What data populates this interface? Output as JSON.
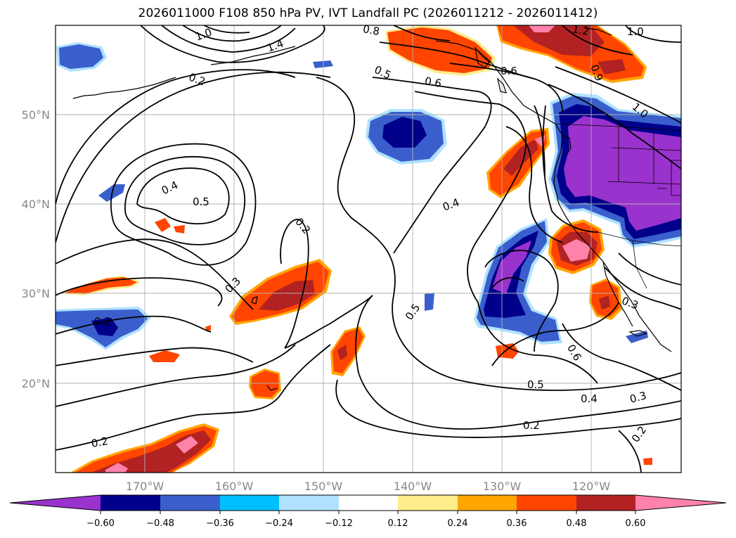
{
  "title": "2026011000 F108 850 hPa PV, IVT Landfall PC (2026011212 - 2026011412)",
  "map": {
    "lon_labels": [
      "170°W",
      "160°W",
      "150°W",
      "140°W",
      "130°W",
      "120°W"
    ],
    "lat_labels": [
      "50°N",
      "40°N",
      "30°N",
      "20°N"
    ],
    "contour_labels": [
      "1.0",
      "1.4",
      "0.8",
      "1.2",
      "1.0",
      "0.2",
      "0.5",
      "0.6",
      "0.6",
      "0.9",
      "1.0",
      "0.4",
      "0.5",
      "0.2",
      "0.4",
      "0.3",
      "0.5",
      "0.2",
      "0.6",
      "0.5",
      "0.4",
      "0.3",
      "0.3",
      "0.2",
      "0.2",
      "0.2"
    ]
  },
  "colorbar": {
    "colors": [
      "#9a32cd",
      "#00008b",
      "#3a5fcd",
      "#00bfff",
      "#b0e2ff",
      "#ffffff",
      "#ffec8b",
      "#ffa500",
      "#ff4500",
      "#b22222",
      "#ff82ab"
    ],
    "tick_labels": [
      "−0.60",
      "−0.48",
      "−0.36",
      "−0.24",
      "−0.12",
      "0.12",
      "0.24",
      "0.36",
      "0.48",
      "0.60"
    ]
  }
}
